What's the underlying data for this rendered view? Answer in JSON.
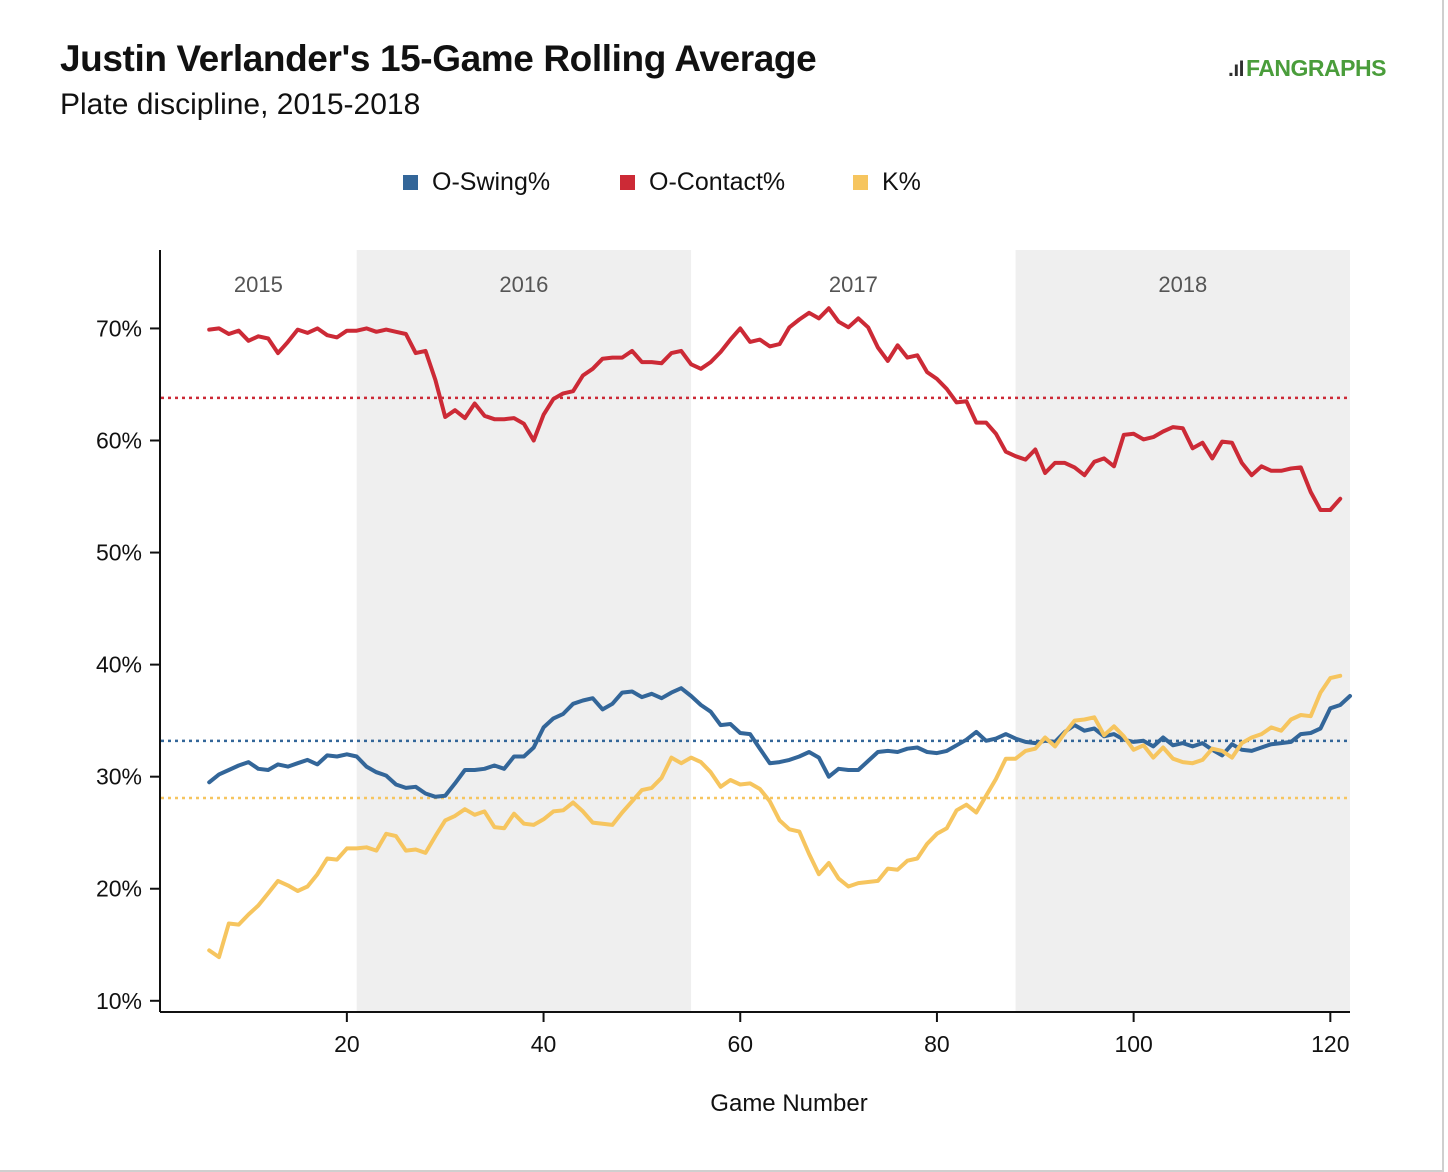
{
  "header": {
    "title": "Justin Verlander's 15-Game Rolling Average",
    "subtitle": "Plate discipline, 2015-2018",
    "logo_text": "FANGRAPHS",
    "logo_mark": ".ıl"
  },
  "colors": {
    "o_swing": "#336699",
    "o_contact": "#cc2a36",
    "k": "#f6c55f",
    "shade": "#efefef"
  },
  "chart_data": {
    "type": "line",
    "title": "Justin Verlander's 15-Game Rolling Average",
    "subtitle": "Plate discipline, 2015-2018",
    "xlabel": "Game Number",
    "ylabel": "",
    "xlim": [
      1,
      122
    ],
    "ylim": [
      9,
      77
    ],
    "x_ticks": [
      20,
      40,
      60,
      80,
      100,
      120
    ],
    "y_ticks": [
      10,
      20,
      30,
      40,
      50,
      60,
      70
    ],
    "y_tick_labels": [
      "10%",
      "20%",
      "30%",
      "40%",
      "50%",
      "60%",
      "70%"
    ],
    "legend_position": "top-center",
    "grid": false,
    "seasons": [
      {
        "label": "2015",
        "start": 1,
        "end": 21,
        "shaded": false
      },
      {
        "label": "2016",
        "start": 21,
        "end": 55,
        "shaded": true
      },
      {
        "label": "2017",
        "start": 55,
        "end": 88,
        "shaded": false
      },
      {
        "label": "2018",
        "start": 88,
        "end": 122,
        "shaded": true
      }
    ],
    "x_start": 6,
    "series": [
      {
        "name": "O-Swing%",
        "color": "#336699",
        "average": 33.2,
        "values": [
          29.5,
          30.2,
          30.6,
          31.0,
          31.3,
          30.7,
          30.6,
          31.1,
          30.9,
          31.2,
          31.5,
          31.1,
          31.9,
          31.8,
          32.0,
          31.8,
          30.9,
          30.4,
          30.1,
          29.3,
          29.0,
          29.1,
          28.5,
          28.2,
          28.3,
          29.4,
          30.6,
          30.6,
          30.7,
          31.0,
          30.7,
          31.8,
          31.8,
          32.6,
          34.4,
          35.2,
          35.6,
          36.5,
          36.8,
          37.0,
          36.0,
          36.5,
          37.5,
          37.6,
          37.1,
          37.4,
          37.0,
          37.5,
          37.9,
          37.2,
          36.4,
          35.8,
          34.6,
          34.7,
          33.9,
          33.8,
          32.5,
          31.2,
          31.3,
          31.5,
          31.8,
          32.2,
          31.7,
          30.0,
          30.7,
          30.6,
          30.6,
          31.4,
          32.2,
          32.3,
          32.2,
          32.5,
          32.6,
          32.2,
          32.1,
          32.3,
          32.8,
          33.3,
          34.0,
          33.2,
          33.4,
          33.8,
          33.4,
          33.1,
          33.0,
          33.2,
          33.1,
          34.0,
          34.6,
          34.1,
          34.3,
          33.6,
          33.8,
          33.3,
          33.1,
          33.2,
          32.7,
          33.5,
          32.8,
          33.0,
          32.7,
          33.0,
          32.4,
          31.9,
          32.9,
          32.4,
          32.3,
          32.6,
          32.9,
          33.0,
          33.1,
          33.8,
          33.9,
          34.3,
          36.1,
          36.4,
          37.2
        ]
      },
      {
        "name": "O-Contact%",
        "color": "#cc2a36",
        "average": 63.8,
        "values": [
          69.9,
          70.0,
          69.5,
          69.8,
          68.9,
          69.3,
          69.1,
          67.8,
          68.8,
          69.9,
          69.6,
          70.0,
          69.4,
          69.2,
          69.8,
          69.8,
          70.0,
          69.7,
          69.9,
          69.7,
          69.5,
          67.8,
          68.0,
          65.4,
          62.1,
          62.7,
          62.0,
          63.3,
          62.2,
          61.9,
          61.9,
          62.0,
          61.5,
          60.0,
          62.3,
          63.7,
          64.2,
          64.4,
          65.8,
          66.4,
          67.3,
          67.4,
          67.4,
          68.0,
          67.0,
          67.0,
          66.9,
          67.8,
          68.0,
          66.8,
          66.4,
          67.0,
          67.9,
          69.0,
          70.0,
          68.8,
          69.0,
          68.4,
          68.6,
          70.1,
          70.8,
          71.4,
          70.9,
          71.8,
          70.6,
          70.1,
          70.9,
          70.1,
          68.3,
          67.1,
          68.5,
          67.4,
          67.6,
          66.1,
          65.5,
          64.6,
          63.4,
          63.5,
          61.6,
          61.6,
          60.6,
          59.0,
          58.6,
          58.3,
          59.2,
          57.1,
          58.0,
          58.0,
          57.6,
          56.9,
          58.1,
          58.4,
          57.7,
          60.5,
          60.6,
          60.1,
          60.3,
          60.8,
          61.2,
          61.1,
          59.3,
          59.8,
          58.4,
          59.9,
          59.8,
          58.0,
          56.9,
          57.7,
          57.3,
          57.3,
          57.5,
          57.6,
          55.4,
          53.8,
          53.8,
          54.8
        ]
      },
      {
        "name": "K%",
        "color": "#f6c55f",
        "average": 28.1,
        "values": [
          14.5,
          13.9,
          16.9,
          16.8,
          17.7,
          18.5,
          19.6,
          20.7,
          20.3,
          19.8,
          20.2,
          21.3,
          22.7,
          22.6,
          23.6,
          23.6,
          23.7,
          23.4,
          24.9,
          24.7,
          23.4,
          23.5,
          23.2,
          24.7,
          26.1,
          26.5,
          27.1,
          26.6,
          26.9,
          25.5,
          25.4,
          26.7,
          25.8,
          25.7,
          26.2,
          26.9,
          27.0,
          27.7,
          26.9,
          25.9,
          25.8,
          25.7,
          26.8,
          27.8,
          28.8,
          29.0,
          29.9,
          31.7,
          31.2,
          31.7,
          31.3,
          30.4,
          29.1,
          29.7,
          29.3,
          29.4,
          28.9,
          27.8,
          26.1,
          25.3,
          25.1,
          23.1,
          21.3,
          22.3,
          20.9,
          20.2,
          20.5,
          20.6,
          20.7,
          21.8,
          21.7,
          22.5,
          22.7,
          24.0,
          24.9,
          25.4,
          27.0,
          27.5,
          26.8,
          28.3,
          29.8,
          31.6,
          31.6,
          32.3,
          32.5,
          33.5,
          32.7,
          33.9,
          35.0,
          35.1,
          35.3,
          33.7,
          34.5,
          33.6,
          32.4,
          32.8,
          31.7,
          32.6,
          31.6,
          31.3,
          31.2,
          31.5,
          32.5,
          32.3,
          31.7,
          33.0,
          33.5,
          33.8,
          34.4,
          34.1,
          35.1,
          35.5,
          35.4,
          37.5,
          38.8,
          39.0
        ]
      }
    ]
  }
}
